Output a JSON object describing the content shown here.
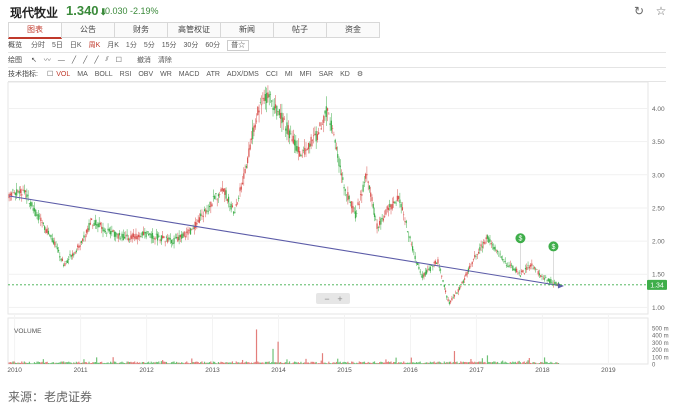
{
  "header": {
    "title": "现代牧业",
    "price": "1.340",
    "price_arrow": "⬇",
    "change": "-0.030 -2.19%",
    "refresh_icon": "refresh-icon",
    "star_icon": "star-icon"
  },
  "tabs": [
    "图表",
    "公告",
    "财务",
    "高管权证",
    "新闻",
    "帖子",
    "资金"
  ],
  "periods": {
    "label": "概览",
    "items": [
      "分时",
      "5日",
      "日K",
      "周K",
      "月K",
      "1分",
      "5分",
      "15分",
      "30分",
      "60分"
    ],
    "active": "周K",
    "adjust": "普☆"
  },
  "drawing": {
    "label": "绘图",
    "undo": "撤消",
    "clear": "清除"
  },
  "indicators": {
    "label": "技术指标:",
    "items": [
      "VOL",
      "MA",
      "BOLL",
      "RSI",
      "OBV",
      "WR",
      "MACD",
      "ATR",
      "ADX/DMS",
      "CCI",
      "MI",
      "MFI",
      "SAR",
      "KD"
    ],
    "active": "VOL"
  },
  "volume_label": "VOLUME",
  "source": "来源：老虎证券",
  "colors": {
    "up": "#d9534f",
    "down": "#3fae4a",
    "trend": "#5c5ca8",
    "price_line": "#3fae4a"
  },
  "chart_data": {
    "type": "candlestick",
    "x_ticks": [
      "2010",
      "2011",
      "2012",
      "2013",
      "2014",
      "2015",
      "2016",
      "2017",
      "2018",
      "2019"
    ],
    "y_ticks": [
      "1.00",
      "1.50",
      "2.00",
      "2.50",
      "3.00",
      "3.50",
      "4.00"
    ],
    "ylim": [
      0.9,
      4.4
    ],
    "volume_ticks": [
      "500 m",
      "400 m",
      "300 m",
      "200 m",
      "100 m",
      "0"
    ],
    "volume_ylim": [
      0,
      500
    ],
    "current_price": "1.34",
    "trendline": {
      "from": {
        "date": "2009-12",
        "price": 2.68
      },
      "to": {
        "date": "2018-04",
        "price": 1.33
      }
    },
    "price_path": [
      [
        "2009-12",
        2.7
      ],
      [
        "2010-03",
        2.75
      ],
      [
        "2010-05",
        2.4
      ],
      [
        "2010-08",
        2.0
      ],
      [
        "2010-10",
        1.65
      ],
      [
        "2011-01",
        1.95
      ],
      [
        "2011-03",
        2.3
      ],
      [
        "2011-06",
        2.15
      ],
      [
        "2011-09",
        2.05
      ],
      [
        "2012-01",
        2.1
      ],
      [
        "2012-06",
        2.0
      ],
      [
        "2012-09",
        2.15
      ],
      [
        "2013-01",
        2.6
      ],
      [
        "2013-03",
        2.8
      ],
      [
        "2013-05",
        2.4
      ],
      [
        "2013-07",
        3.1
      ],
      [
        "2013-09",
        3.9
      ],
      [
        "2013-11",
        4.2
      ],
      [
        "2014-02",
        3.8
      ],
      [
        "2014-05",
        3.3
      ],
      [
        "2014-08",
        3.6
      ],
      [
        "2014-10",
        4.0
      ],
      [
        "2015-01",
        2.8
      ],
      [
        "2015-03",
        2.4
      ],
      [
        "2015-05",
        3.0
      ],
      [
        "2015-07",
        2.2
      ],
      [
        "2015-09",
        2.5
      ],
      [
        "2015-11",
        2.65
      ],
      [
        "2016-01",
        2.0
      ],
      [
        "2016-03",
        1.45
      ],
      [
        "2016-06",
        1.7
      ],
      [
        "2016-08",
        1.05
      ],
      [
        "2016-10",
        1.3
      ],
      [
        "2017-01",
        1.8
      ],
      [
        "2017-03",
        2.05
      ],
      [
        "2017-06",
        1.7
      ],
      [
        "2017-09",
        1.5
      ],
      [
        "2017-11",
        1.65
      ],
      [
        "2018-01",
        1.45
      ],
      [
        "2018-04",
        1.34
      ]
    ],
    "events": [
      {
        "date": "2017-09",
        "label": "$"
      },
      {
        "date": "2018-03",
        "label": "$"
      }
    ],
    "volume_spikes": [
      [
        "2013-09",
        480
      ],
      [
        "2014-01",
        310
      ],
      [
        "2013-12",
        210
      ],
      [
        "2016-09",
        180
      ],
      [
        "2017-03",
        120
      ],
      [
        "2014-09",
        150
      ]
    ]
  }
}
